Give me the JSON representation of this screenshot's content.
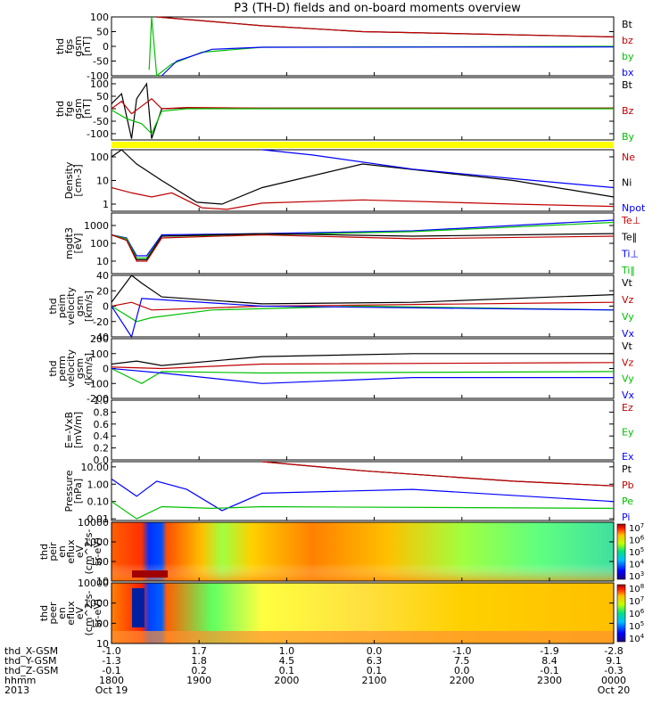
{
  "title": "P3 (TH-D) fields and on-board moments overview",
  "chart_data": [
    {
      "type": "line",
      "panel": "fgs",
      "ylabel": [
        "thd",
        "fgs",
        "gsm",
        "[nT]"
      ],
      "ylim": [
        -100,
        100
      ],
      "yticks": [
        "100",
        "50",
        "0",
        "-50",
        "-100"
      ],
      "legend": [
        "Bt",
        "bz",
        "by",
        "bx"
      ],
      "legend_colors": [
        "#000000",
        "#c00000",
        "#00c000",
        "#0000ff"
      ],
      "series": [
        {
          "name": "Bt",
          "x": [
            0.09,
            0.3,
            0.5,
            1.0
          ],
          "values": [
            100,
            70,
            50,
            32
          ]
        },
        {
          "name": "bz",
          "x": [
            0.09,
            0.3,
            0.5,
            1.0
          ],
          "values": [
            100,
            70,
            50,
            32
          ]
        },
        {
          "name": "by",
          "x": [
            0.075,
            0.08,
            0.09,
            0.12,
            0.18,
            0.3,
            1.0
          ],
          "values": [
            -80,
            100,
            -100,
            -60,
            -20,
            -3,
            0
          ]
        },
        {
          "name": "bx",
          "x": [
            0.1,
            0.13,
            0.2,
            0.3,
            1.0
          ],
          "values": [
            -100,
            -50,
            -10,
            -3,
            -2
          ]
        }
      ]
    },
    {
      "type": "line",
      "panel": "fge",
      "ylabel": [
        "thd",
        "fge",
        "gsm",
        "[nT]"
      ],
      "ylim": [
        -125,
        125
      ],
      "yticks": [
        "100",
        "50",
        "0",
        "-50",
        "-100"
      ],
      "legend": [
        "Bt",
        "Bz",
        "By"
      ],
      "legend_colors": [
        "#000000",
        "#c00000",
        "#00c000"
      ],
      "series": [
        {
          "name": "Bt",
          "x": [
            0.0,
            0.02,
            0.04,
            0.05,
            0.07,
            0.08,
            0.1,
            0.15,
            0.3,
            1.0
          ],
          "values": [
            20,
            60,
            -120,
            40,
            100,
            -120,
            0,
            3,
            2,
            2
          ]
        },
        {
          "name": "Bz",
          "x": [
            0.0,
            0.02,
            0.04,
            0.06,
            0.08,
            0.1,
            0.15,
            0.3,
            1.0
          ],
          "values": [
            0,
            30,
            -20,
            10,
            40,
            0,
            5,
            2,
            2
          ]
        },
        {
          "name": "By",
          "x": [
            0.0,
            0.03,
            0.06,
            0.08,
            0.1,
            0.15,
            0.3,
            1.0
          ],
          "values": [
            -5,
            -40,
            -60,
            -100,
            -10,
            0,
            0,
            0
          ]
        }
      ]
    },
    {
      "type": "line",
      "panel": "density",
      "ylabel": [
        "Density",
        "[cm-3]"
      ],
      "ylim": [
        0.5,
        200
      ],
      "scale": "log",
      "yticks": [
        "100",
        "10",
        "1"
      ],
      "legend": [
        "Ne",
        "Ni",
        "Npot"
      ],
      "legend_colors": [
        "#c00000",
        "#000000",
        "#0000ff"
      ],
      "series": [
        {
          "name": "Ni",
          "x": [
            0.0,
            0.02,
            0.05,
            0.1,
            0.17,
            0.22,
            0.3,
            0.5,
            0.8,
            1.0
          ],
          "values": [
            100,
            200,
            50,
            10,
            1.2,
            1.0,
            5,
            50,
            10,
            2
          ]
        },
        {
          "name": "Npot",
          "x": [
            0.3,
            0.4,
            0.6,
            0.8,
            1.0
          ],
          "values": [
            200,
            120,
            30,
            12,
            5
          ]
        },
        {
          "name": "Ne",
          "x": [
            0.0,
            0.04,
            0.08,
            0.12,
            0.18,
            0.23,
            0.3,
            0.5,
            0.8,
            1.0
          ],
          "values": [
            5,
            3,
            2,
            3,
            0.7,
            0.6,
            1.1,
            1.5,
            1.0,
            0.8
          ]
        }
      ]
    },
    {
      "type": "line",
      "panel": "temperature",
      "ylabel": [
        "mgdt3",
        "[eV]"
      ],
      "ylim": [
        2,
        5000
      ],
      "scale": "log",
      "yticks": [
        "1000",
        "100",
        "10"
      ],
      "legend": [
        "Te⊥",
        "Te‖",
        "Ti⊥",
        "Ti‖"
      ],
      "legend_colors": [
        "#c00000",
        "#000000",
        "#0000ff",
        "#00c000"
      ],
      "series": [
        {
          "name": "Ti⊥",
          "x": [
            0.0,
            0.03,
            0.05,
            0.07,
            0.1,
            0.3,
            0.6,
            1.0
          ],
          "values": [
            300,
            200,
            20,
            20,
            300,
            350,
            500,
            2000
          ]
        },
        {
          "name": "Ti‖",
          "x": [
            0.0,
            0.03,
            0.05,
            0.07,
            0.1,
            0.3,
            0.6,
            1.0
          ],
          "values": [
            300,
            180,
            15,
            15,
            250,
            300,
            450,
            1500
          ]
        },
        {
          "name": "Te‖",
          "x": [
            0.0,
            0.03,
            0.05,
            0.07,
            0.1,
            0.3,
            0.6,
            1.0
          ],
          "values": [
            300,
            150,
            12,
            12,
            250,
            350,
            250,
            350
          ]
        },
        {
          "name": "Te⊥",
          "x": [
            0.0,
            0.03,
            0.05,
            0.07,
            0.1,
            0.3,
            0.6,
            1.0
          ],
          "values": [
            300,
            150,
            10,
            10,
            200,
            300,
            180,
            250
          ]
        }
      ]
    },
    {
      "type": "line",
      "panel": "velocity-peim",
      "ylabel": [
        "thd",
        "peim",
        "velocity",
        "gsm",
        "[km/s]"
      ],
      "ylim": [
        -40,
        40
      ],
      "yticks": [
        "40",
        "20",
        "0",
        "-20",
        "-40"
      ],
      "legend": [
        "Vt",
        "Vz",
        "Vy",
        "Vx"
      ],
      "legend_colors": [
        "#000000",
        "#c00000",
        "#00c000",
        "#0000ff"
      ],
      "series": [
        {
          "name": "Vt",
          "x": [
            0.0,
            0.04,
            0.06,
            0.1,
            0.3,
            0.6,
            1.0
          ],
          "values": [
            5,
            40,
            30,
            12,
            3,
            5,
            15
          ]
        },
        {
          "name": "Vz",
          "x": [
            0.0,
            0.04,
            0.08,
            0.3,
            1.0
          ],
          "values": [
            0,
            5,
            -5,
            0,
            5
          ]
        },
        {
          "name": "Vy",
          "x": [
            0.0,
            0.05,
            0.08,
            0.2,
            0.5,
            1.0
          ],
          "values": [
            0,
            -20,
            -15,
            -5,
            0,
            -5
          ]
        },
        {
          "name": "Vx",
          "x": [
            0.0,
            0.04,
            0.06,
            0.3,
            1.0
          ],
          "values": [
            0,
            -40,
            10,
            0,
            -5
          ]
        }
      ]
    },
    {
      "type": "line",
      "panel": "velocity-perm",
      "ylabel": [
        "thd",
        "perm",
        "velocity",
        "gsm",
        "[km/s]"
      ],
      "ylim": [
        -200,
        200
      ],
      "yticks": [
        "200",
        "100",
        "0",
        "-100",
        "-200"
      ],
      "legend": [
        "Vt",
        "Vz",
        "Vy",
        "Vx"
      ],
      "legend_colors": [
        "#000000",
        "#c00000",
        "#00c000",
        "#0000ff"
      ],
      "series": [
        {
          "name": "Vt",
          "x": [
            0.0,
            0.05,
            0.1,
            0.3,
            0.6,
            1.0
          ],
          "values": [
            30,
            50,
            20,
            80,
            100,
            100
          ]
        },
        {
          "name": "Vz",
          "x": [
            0.0,
            0.1,
            0.3,
            1.0
          ],
          "values": [
            10,
            0,
            30,
            40
          ]
        },
        {
          "name": "Vy",
          "x": [
            0.0,
            0.06,
            0.1,
            0.3,
            1.0
          ],
          "values": [
            0,
            -100,
            -20,
            -30,
            -20
          ]
        },
        {
          "name": "Vx",
          "x": [
            0.0,
            0.1,
            0.3,
            0.6,
            1.0
          ],
          "values": [
            0,
            -30,
            -100,
            -60,
            -60
          ]
        }
      ]
    },
    {
      "type": "line",
      "panel": "efield",
      "ylabel": [
        "E=-VxB",
        "[mV/m]"
      ],
      "ylim": [
        0,
        1
      ],
      "yticks": [
        "1.0",
        "0.8",
        "0.6",
        "0.4",
        "0.2",
        "0.0"
      ],
      "legend": [
        "Ez",
        "Ey",
        "Ex"
      ],
      "legend_colors": [
        "#c00000",
        "#00c000",
        "#0000ff"
      ],
      "series": []
    },
    {
      "type": "line",
      "panel": "pressure",
      "ylabel": [
        "Pressure",
        "[nPa]"
      ],
      "ylim": [
        0.008,
        20
      ],
      "scale": "log",
      "yticks": [
        "10.00",
        "1.00",
        "0.10",
        "0.01"
      ],
      "legend": [
        "Pt",
        "Pb",
        "Pe",
        "Pi"
      ],
      "legend_colors": [
        "#000000",
        "#c00000",
        "#00c000",
        "#0000ff"
      ],
      "series": [
        {
          "name": "Pt",
          "x": [
            0.3,
            0.5,
            0.8,
            1.0
          ],
          "values": [
            20,
            6,
            1.5,
            0.8
          ]
        },
        {
          "name": "Pb",
          "x": [
            0.3,
            0.5,
            0.8,
            1.0
          ],
          "values": [
            20,
            6,
            1.5,
            0.8
          ]
        },
        {
          "name": "Pi",
          "x": [
            0.0,
            0.05,
            0.09,
            0.15,
            0.22,
            0.3,
            0.6,
            1.0
          ],
          "values": [
            2,
            0.2,
            1.5,
            0.5,
            0.03,
            0.3,
            0.5,
            0.1
          ]
        },
        {
          "name": "Pe",
          "x": [
            0.0,
            0.05,
            0.1,
            0.2,
            0.3,
            1.0
          ],
          "values": [
            0.1,
            0.01,
            0.05,
            0.04,
            0.05,
            0.04
          ]
        }
      ]
    },
    {
      "type": "heatmap",
      "panel": "peir-en-eflux",
      "ylabel": [
        "thd",
        "peir",
        "en",
        "eflux",
        "eV",
        "(cm^2-s-",
        "sr-eV)"
      ],
      "ylim": [
        10,
        10000
      ],
      "scale": "log",
      "yticks": [
        "10000",
        "1000",
        "100",
        "10"
      ],
      "colorbar": [
        "10^7",
        "10^6",
        "10^5",
        "10^4",
        "10^3"
      ]
    },
    {
      "type": "heatmap",
      "panel": "peer-en-eflux",
      "ylabel": [
        "thd",
        "peer",
        "en",
        "eflux",
        "eV",
        "(cm^2-s-",
        "sr-eV)"
      ],
      "ylim": [
        10,
        10000
      ],
      "scale": "log",
      "yticks": [
        "10000",
        "1000",
        "100",
        "10"
      ],
      "colorbar": [
        "10^8",
        "10^7",
        "10^6",
        "10^5",
        "10^4"
      ]
    }
  ],
  "ephemeris": {
    "labels": [
      "thd_X-GSM",
      "thd_Y-GSM",
      "thd_Z-GSM",
      "hhmm",
      "2013"
    ],
    "columns": [
      {
        "x": 0.0,
        "vals": [
          "-1.0",
          "-1.3",
          "-0.1",
          "1800",
          "Oct 19"
        ]
      },
      {
        "x": 0.1744,
        "vals": [
          "1.7",
          "1.8",
          "0.2",
          "1900",
          ""
        ]
      },
      {
        "x": 0.3488,
        "vals": [
          "1.0",
          "4.5",
          "0.1",
          "2000",
          ""
        ]
      },
      {
        "x": 0.5232,
        "vals": [
          "0.0",
          "6.3",
          "0.1",
          "2100",
          ""
        ]
      },
      {
        "x": 0.6977,
        "vals": [
          "-1.0",
          "7.5",
          "0.0",
          "2200",
          ""
        ]
      },
      {
        "x": 0.8721,
        "vals": [
          "-1.9",
          "8.4",
          "-0.1",
          "2300",
          ""
        ]
      },
      {
        "x": 1.0,
        "vals": [
          "-2.8",
          "9.1",
          "-0.3",
          "0000",
          "Oct 20"
        ]
      }
    ]
  }
}
